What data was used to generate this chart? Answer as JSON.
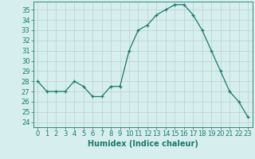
{
  "x": [
    0,
    1,
    2,
    3,
    4,
    5,
    6,
    7,
    8,
    9,
    10,
    11,
    12,
    13,
    14,
    15,
    16,
    17,
    18,
    19,
    20,
    21,
    22,
    23
  ],
  "y": [
    28,
    27,
    27,
    27,
    28,
    27.5,
    26.5,
    26.5,
    27.5,
    27.5,
    31,
    33,
    33.5,
    34.5,
    35,
    35.5,
    35.5,
    34.5,
    33,
    31,
    29,
    27,
    26,
    24.5
  ],
  "title": "",
  "xlabel": "Humidex (Indice chaleur)",
  "ylabel": "",
  "ylim": [
    23.5,
    35.8
  ],
  "xlim": [
    -0.5,
    23.5
  ],
  "yticks": [
    24,
    25,
    26,
    27,
    28,
    29,
    30,
    31,
    32,
    33,
    34,
    35
  ],
  "xticks": [
    0,
    1,
    2,
    3,
    4,
    5,
    6,
    7,
    8,
    9,
    10,
    11,
    12,
    13,
    14,
    15,
    16,
    17,
    18,
    19,
    20,
    21,
    22,
    23
  ],
  "line_color": "#1a7a6e",
  "marker": "+",
  "bg_color": "#d6eeee",
  "grid_color": "#b8d0d0",
  "tick_fontsize": 6.0,
  "xlabel_fontsize": 7.0
}
